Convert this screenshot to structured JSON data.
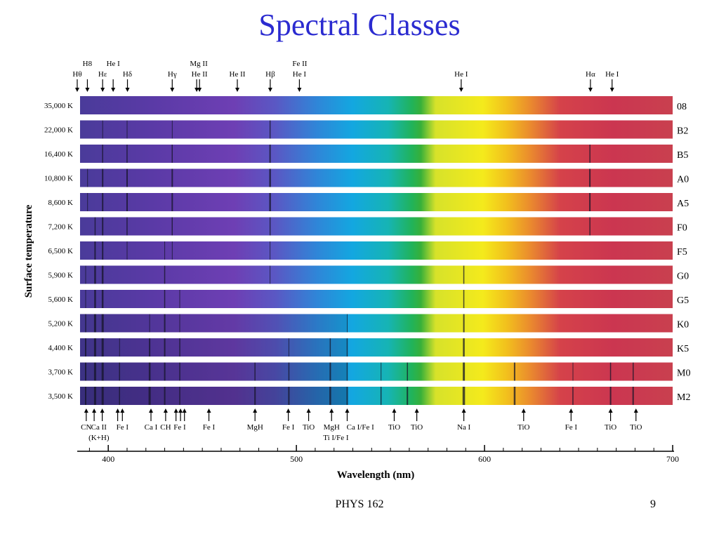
{
  "slide": {
    "title": "Spectral Classes",
    "footer_course": "PHYS 162",
    "footer_page": "9"
  },
  "y_axis_title": "Surface temperature",
  "x_axis_title": "Wavelength (nm)",
  "x_range": [
    385,
    700
  ],
  "x_ticks": [
    400,
    500,
    600,
    700
  ],
  "spectra": [
    {
      "temp": "35,000 K",
      "cls": "08",
      "lines": []
    },
    {
      "temp": "22,000 K",
      "cls": "B2",
      "lines": [
        [
          397,
          1
        ],
        [
          410,
          1
        ],
        [
          434,
          1
        ],
        [
          486,
          1.5
        ]
      ]
    },
    {
      "temp": "16,400 K",
      "cls": "B5",
      "lines": [
        [
          397,
          1.5
        ],
        [
          410,
          1.5
        ],
        [
          434,
          1.5
        ],
        [
          486,
          2
        ],
        [
          656,
          1.5
        ]
      ]
    },
    {
      "temp": "10,800 K",
      "cls": "A0",
      "lines": [
        [
          389,
          1
        ],
        [
          397,
          2
        ],
        [
          410,
          2
        ],
        [
          434,
          2
        ],
        [
          486,
          2.5
        ],
        [
          656,
          2
        ]
      ]
    },
    {
      "temp": "8,600 K",
      "cls": "A5",
      "lines": [
        [
          389,
          1
        ],
        [
          397,
          2
        ],
        [
          410,
          2
        ],
        [
          434,
          2
        ],
        [
          486,
          2.5
        ],
        [
          656,
          2
        ]
      ]
    },
    {
      "temp": "7,200 K",
      "cls": "F0",
      "lines": [
        [
          393,
          1.5
        ],
        [
          397,
          2
        ],
        [
          410,
          1.5
        ],
        [
          434,
          1.5
        ],
        [
          486,
          1.5
        ],
        [
          656,
          1.5
        ]
      ]
    },
    {
      "temp": "6,500 K",
      "cls": "F5",
      "lines": [
        [
          393,
          2
        ],
        [
          397,
          2
        ],
        [
          410,
          1
        ],
        [
          430,
          1
        ],
        [
          434,
          1
        ],
        [
          486,
          1
        ]
      ]
    },
    {
      "temp": "5,900 K",
      "cls": "G0",
      "lines": [
        [
          388,
          1
        ],
        [
          393,
          2.5
        ],
        [
          397,
          2.5
        ],
        [
          430,
          1.5
        ],
        [
          486,
          1
        ],
        [
          589,
          1.5
        ]
      ]
    },
    {
      "temp": "5,600 K",
      "cls": "G5",
      "lines": [
        [
          388,
          1
        ],
        [
          393,
          2.5
        ],
        [
          397,
          2.5
        ],
        [
          430,
          1.5
        ],
        [
          438,
          1
        ],
        [
          589,
          1.5
        ]
      ]
    },
    {
      "temp": "5,200 K",
      "cls": "K0",
      "lines": [
        [
          388,
          1.5
        ],
        [
          393,
          3
        ],
        [
          397,
          3
        ],
        [
          422,
          1
        ],
        [
          430,
          2
        ],
        [
          438,
          1
        ],
        [
          527,
          1
        ],
        [
          589,
          2
        ]
      ]
    },
    {
      "temp": "4,400 K",
      "cls": "K5",
      "lines": [
        [
          388,
          2
        ],
        [
          393,
          3
        ],
        [
          397,
          3
        ],
        [
          406,
          1
        ],
        [
          422,
          2
        ],
        [
          430,
          2
        ],
        [
          438,
          1.5
        ],
        [
          496,
          1
        ],
        [
          518,
          1.5
        ],
        [
          527,
          1.5
        ],
        [
          589,
          2.5
        ]
      ]
    },
    {
      "temp": "3,700 K",
      "cls": "M0",
      "lines": [
        [
          388,
          2
        ],
        [
          393,
          3
        ],
        [
          397,
          3
        ],
        [
          406,
          1.5
        ],
        [
          422,
          2.5
        ],
        [
          430,
          2
        ],
        [
          438,
          1.5
        ],
        [
          478,
          1.5
        ],
        [
          496,
          1.5
        ],
        [
          518,
          2
        ],
        [
          527,
          1.5
        ],
        [
          545,
          1
        ],
        [
          559,
          1.5
        ],
        [
          589,
          3
        ],
        [
          616,
          2
        ],
        [
          647,
          1
        ],
        [
          667,
          1.5
        ],
        [
          679,
          1.5
        ]
      ]
    },
    {
      "temp": "3,500 K",
      "cls": "M2",
      "lines": [
        [
          388,
          2
        ],
        [
          393,
          3
        ],
        [
          397,
          3
        ],
        [
          406,
          1.5
        ],
        [
          422,
          3
        ],
        [
          430,
          2
        ],
        [
          438,
          1.5
        ],
        [
          478,
          2
        ],
        [
          496,
          2
        ],
        [
          518,
          2.5
        ],
        [
          527,
          2
        ],
        [
          545,
          1.5
        ],
        [
          559,
          2
        ],
        [
          589,
          3.5
        ],
        [
          616,
          2.5
        ],
        [
          647,
          1.5
        ],
        [
          667,
          2
        ],
        [
          679,
          2
        ]
      ]
    }
  ],
  "top_labels": [
    {
      "id": "h-theta",
      "text": "Hθ",
      "x": 383.5,
      "row": 2
    },
    {
      "id": "h-eight",
      "text": "H8",
      "x": 388.9,
      "row": 1
    },
    {
      "id": "h-epsilon",
      "text": "Hε",
      "x": 397.0,
      "row": 2
    },
    {
      "id": "he-i-a",
      "text": "He I",
      "x": 402.6,
      "row": 1
    },
    {
      "id": "h-delta",
      "text": "Hδ",
      "x": 410.2,
      "row": 2
    },
    {
      "id": "h-gamma",
      "text": "Hγ",
      "x": 434.0,
      "row": 2
    },
    {
      "id": "mg-ii",
      "text": "Mg II",
      "x": 448.1,
      "row": 1
    },
    {
      "id": "he-ii-a",
      "text": "He II",
      "x": 448.5,
      "row": 2
    },
    {
      "id": "he-ii-b",
      "text": "He II",
      "x": 468.6,
      "row": 2
    },
    {
      "id": "h-beta",
      "text": "Hβ",
      "x": 486.1,
      "row": 2
    },
    {
      "id": "fe-ii",
      "text": "Fe II",
      "x": 501.8,
      "row": 1
    },
    {
      "id": "he-i-b",
      "text": "He I",
      "x": 501.6,
      "row": 2
    },
    {
      "id": "he-i-c",
      "text": "He I",
      "x": 587.6,
      "row": 2
    },
    {
      "id": "h-alpha",
      "text": "Hα",
      "x": 656.3,
      "row": 2
    },
    {
      "id": "he-i-d",
      "text": "He I",
      "x": 667.8,
      "row": 2
    }
  ],
  "top_arrows_x": [
    383.5,
    388.9,
    397.0,
    402.6,
    410.2,
    434.0,
    447.0,
    448.5,
    468.6,
    486.1,
    501.6,
    587.6,
    656.3,
    667.8
  ],
  "bottom_labels": [
    {
      "id": "cn",
      "text": "CN",
      "x": 388.3
    },
    {
      "id": "ca-ii",
      "text": "Ca II",
      "x": 395.0
    },
    {
      "id": "ca-ii-kh",
      "text": "(K+H)",
      "x": 395.0,
      "line2": true
    },
    {
      "id": "fe-i-a",
      "text": "Fe I",
      "x": 407.5
    },
    {
      "id": "ca-i",
      "text": "Ca I",
      "x": 422.7
    },
    {
      "id": "ch",
      "text": "CH",
      "x": 430.5
    },
    {
      "id": "fe-i-b",
      "text": "Fe I",
      "x": 438.0
    },
    {
      "id": "fe-i-c",
      "text": "Fe I",
      "x": 453.5
    },
    {
      "id": "mgh-a",
      "text": "MgH",
      "x": 478.0
    },
    {
      "id": "fe-i-d",
      "text": "Fe I",
      "x": 495.7
    },
    {
      "id": "tio-a",
      "text": "TiO",
      "x": 506.5
    },
    {
      "id": "mgh-b",
      "text": "MgH",
      "x": 518.7
    },
    {
      "id": "ti-i-fe-i",
      "text": "Ti I/Fe I",
      "x": 521.0,
      "line2": true
    },
    {
      "id": "ca-i-fe-i",
      "text": "Ca I/Fe I",
      "x": 534.0
    },
    {
      "id": "tio-b",
      "text": "TiO",
      "x": 552.0
    },
    {
      "id": "tio-c",
      "text": "TiO",
      "x": 564.0
    },
    {
      "id": "na-i",
      "text": "Na I",
      "x": 589.0
    },
    {
      "id": "tio-d",
      "text": "TiO",
      "x": 620.8
    },
    {
      "id": "fe-i-e",
      "text": "Fe I",
      "x": 646.0
    },
    {
      "id": "tio-e",
      "text": "TiO",
      "x": 667.0
    },
    {
      "id": "tio-f",
      "text": "TiO",
      "x": 680.5
    }
  ],
  "bottom_arrows_x": [
    388.3,
    392.5,
    396.8,
    405.0,
    407.5,
    422.7,
    430.5,
    436.0,
    438.4,
    440.5,
    453.5,
    478.0,
    495.7,
    506.5,
    518.7,
    527.0,
    552.0,
    564.0,
    589.0,
    620.8,
    646.0,
    667.0,
    680.5
  ]
}
